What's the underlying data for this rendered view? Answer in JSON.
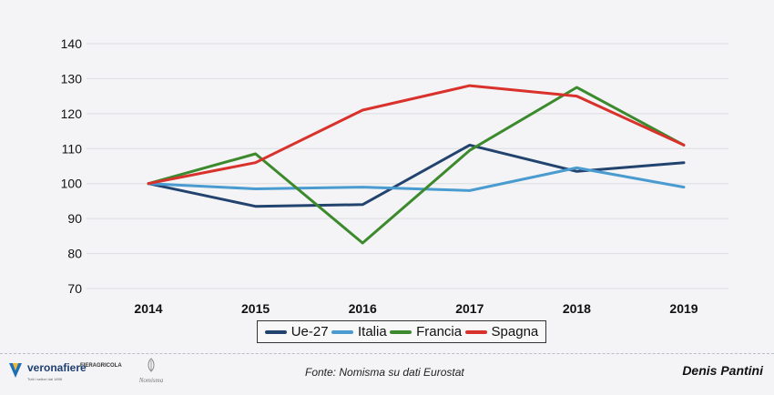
{
  "chart_data": {
    "type": "line",
    "x": [
      "2014",
      "2015",
      "2016",
      "2017",
      "2018",
      "2019"
    ],
    "ylim": [
      70,
      140
    ],
    "yticks": [
      70,
      80,
      90,
      100,
      110,
      120,
      130,
      140
    ],
    "grid": true,
    "legend_position": "bottom",
    "series": [
      {
        "name": "Ue-27",
        "color": "#23436f",
        "values": [
          100,
          93.5,
          94,
          111,
          103.5,
          106
        ]
      },
      {
        "name": "Italia",
        "color": "#4a9bd0",
        "values": [
          100,
          98.5,
          99,
          98,
          104.5,
          99
        ]
      },
      {
        "name": "Francia",
        "color": "#3d8a2e",
        "values": [
          100,
          108.5,
          83,
          109.5,
          127.5,
          111
        ]
      },
      {
        "name": "Spagna",
        "color": "#d9312b",
        "values": [
          100,
          106,
          121,
          128,
          125,
          111
        ]
      }
    ]
  },
  "footer": {
    "logo_verona": "veronafiere",
    "logo_verona_sub": "Tutti i settori dal 1898",
    "logo_fiera": "FIERAGRICOLA",
    "logo_nomisma": "Nomisma",
    "source": "Fonte: Nomisma su dati Eurostat",
    "author": "Denis Pantini"
  }
}
